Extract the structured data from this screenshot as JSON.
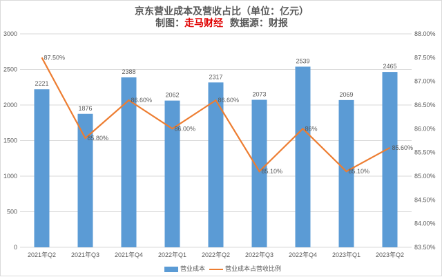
{
  "title": {
    "line1": "京东营业成本及营收占比（单位：亿元）",
    "prefix": "制图：",
    "brand": "走马财经",
    "source": "数据源：财报"
  },
  "chart_data": {
    "type": "bar+line",
    "categories": [
      "2021年Q2",
      "2021年Q3",
      "2021年Q4",
      "2022年Q1",
      "2022年Q2",
      "2022年Q3",
      "2022年Q4",
      "2023年Q1",
      "2023年Q2"
    ],
    "series": [
      {
        "name": "营业成本",
        "type": "bar",
        "axis": "left",
        "color": "#5b9bd5",
        "values": [
          2221,
          1876,
          2388,
          2062,
          2317,
          2073,
          2539,
          2069,
          2465
        ],
        "labels": [
          "2221",
          "1876",
          "2388",
          "2062",
          "2317",
          "2073",
          "2539",
          "2069",
          "2465"
        ]
      },
      {
        "name": "营业成本占营收比例",
        "type": "line",
        "axis": "right",
        "color": "#ed7d31",
        "values": [
          87.5,
          85.8,
          86.6,
          86.0,
          86.6,
          85.1,
          86.0,
          85.1,
          85.6
        ],
        "labels": [
          "87.50%",
          "85.80%",
          "86.60%",
          "86.00%",
          "86.60%",
          "85.10%",
          "86%",
          "85.10%",
          "85.60%"
        ]
      }
    ],
    "yleft": {
      "min": 0,
      "max": 3000,
      "ticks": [
        "0",
        "500",
        "1000",
        "1500",
        "2000",
        "2500",
        "3000"
      ]
    },
    "yright": {
      "min": 83.5,
      "max": 88,
      "ticks": [
        "83.50%",
        "84.00%",
        "84.50%",
        "85.00%",
        "85.50%",
        "86.00%",
        "86.50%",
        "87.00%",
        "87.50%",
        "88.00%"
      ]
    },
    "grid": true,
    "legend": "bottom"
  }
}
